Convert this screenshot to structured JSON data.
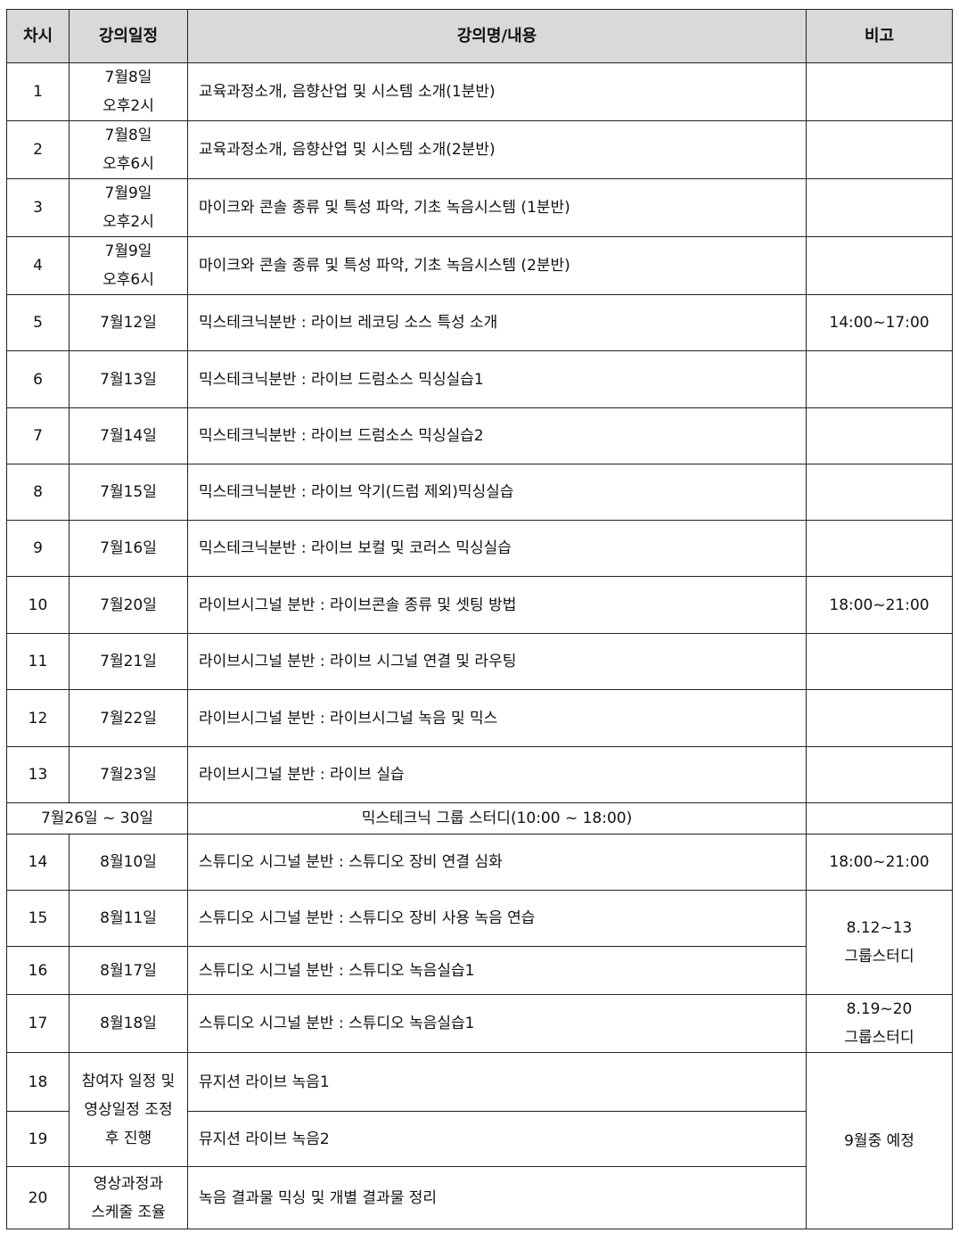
{
  "headers": {
    "session": "차시",
    "date": "강의일정",
    "content": "강의명/내용",
    "note": "비고"
  },
  "rows": [
    {
      "no": "1",
      "date1": "7월8일",
      "date2": "오후2시",
      "content": "교육과정소개, 음향산업 및 시스템 소개(1분반)",
      "note": ""
    },
    {
      "no": "2",
      "date1": "7월8일",
      "date2": "오후6시",
      "content": "교육과정소개, 음향산업 및 시스템 소개(2분반)",
      "note": ""
    },
    {
      "no": "3",
      "date1": "7월9일",
      "date2": "오후2시",
      "content": "마이크와 콘솔 종류 및 특성 파악, 기초 녹음시스템 (1분반)",
      "note": ""
    },
    {
      "no": "4",
      "date1": "7월9일",
      "date2": "오후6시",
      "content": "마이크와 콘솔 종류 및 특성 파악, 기초 녹음시스템 (2분반)",
      "note": ""
    },
    {
      "no": "5",
      "date1": "7월12일",
      "content": "믹스테크닉분반 : 라이브 레코딩 소스 특성 소개",
      "note": "14:00~17:00"
    },
    {
      "no": "6",
      "date1": "7월13일",
      "content": "믹스테크닉분반 : 라이브 드럼소스 믹싱실습1",
      "note": ""
    },
    {
      "no": "7",
      "date1": "7월14일",
      "content": "믹스테크닉분반 : 라이브 드럼소스 믹싱실습2",
      "note": ""
    },
    {
      "no": "8",
      "date1": "7월15일",
      "content": "믹스테크닉분반 : 라이브  악기(드럼 제외)믹싱실습",
      "note": ""
    },
    {
      "no": "9",
      "date1": "7월16일",
      "content": "믹스테크닉분반 : 라이브 보컬 및 코러스 믹싱실습",
      "note": ""
    },
    {
      "no": "10",
      "date1": "7월20일",
      "content": "라이브시그널 분반 : 라이브콘솔 종류 및 셋팅 방법",
      "note": "18:00~21:00"
    },
    {
      "no": "11",
      "date1": "7월21일",
      "content": "라이브시그널 분반 : 라이브 시그널 연결 및 라우팅",
      "note": ""
    },
    {
      "no": "12",
      "date1": "7월22일",
      "content": "라이브시그널 분반 : 라이브시그널 녹음 및 믹스",
      "note": ""
    },
    {
      "no": "13",
      "date1": "7월23일",
      "content": "라이브시그널 분반 : 라이브 실습",
      "note": ""
    },
    {
      "date1": "7월26일 ~ 30일",
      "content": "믹스테크닉 그룹 스터디(10:00 ~ 18:00)",
      "note": ""
    },
    {
      "no": "14",
      "date1": "8월10일",
      "content": "스튜디오 시그널 분반 : 스튜디오 장비 연결 심화",
      "note": "18:00~21:00"
    },
    {
      "no": "15",
      "date1": "8월11일",
      "content": "스튜디오 시그널 분반 : 스튜디오 장비 사용 녹음 연습",
      "note1": "8.12~13",
      "note2": "그룹스터디"
    },
    {
      "no": "16",
      "date1": "8월17일",
      "content": "스튜디오 시그널 분반 : 스튜디오 녹음실습1"
    },
    {
      "no": "17",
      "date1": "8월18일",
      "content": "스튜디오 시그널 분반 : 스튜디오 녹음실습1",
      "note1": "8.19~20",
      "note2": "그룹스터디"
    },
    {
      "no": "18",
      "date1": "참여자 일정 및",
      "date2": "영상일정 조정",
      "date3": "후 진행",
      "content": "뮤지션 라이브 녹음1",
      "note": "9월중 예정"
    },
    {
      "no": "19",
      "content": "뮤지션 라이브 녹음2"
    },
    {
      "no": "20",
      "date1": "영상과정과",
      "date2": "스케줄 조율",
      "content": "녹음 결과물 믹싱 및 개별 결과물 정리"
    }
  ]
}
